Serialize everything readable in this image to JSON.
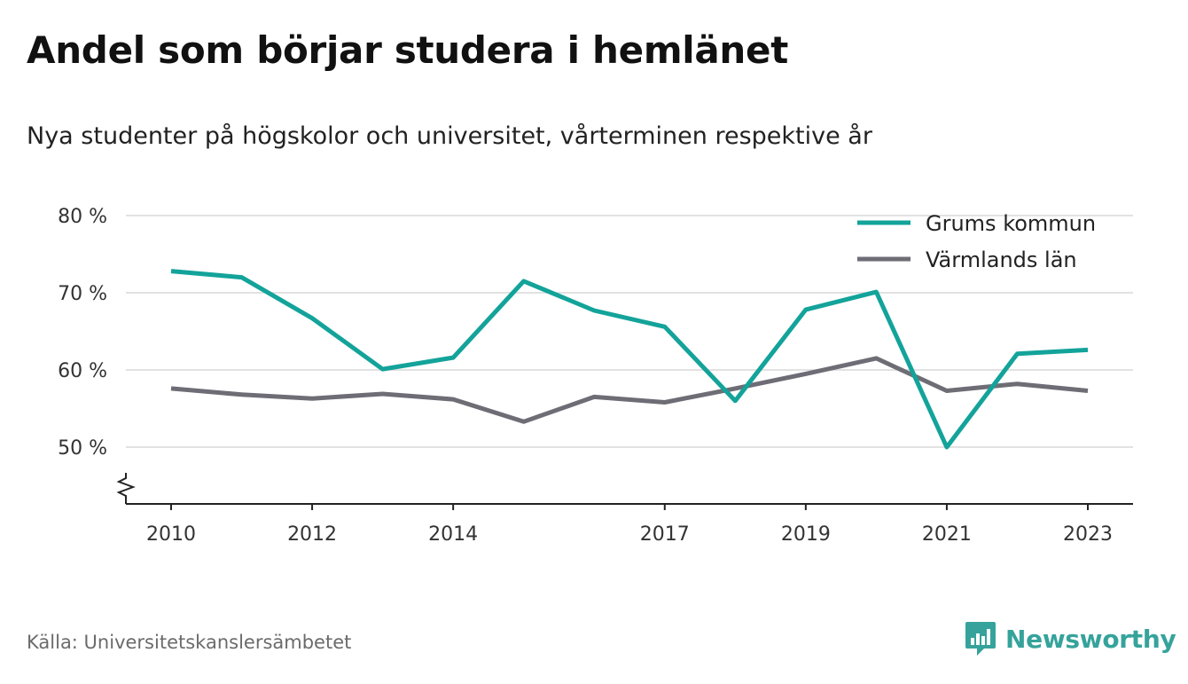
{
  "title": "Andel som börjar studera i hemlänet",
  "subtitle": "Nya studenter på högskolor och universitet, vårterminen respektive år",
  "source": "Källa: Universitetskanslersämbetet",
  "brand": {
    "name": "Newsworthy",
    "icon": "newsworthy-logo-icon",
    "color": "#35a39b"
  },
  "chart_data": {
    "type": "line",
    "x": [
      2010,
      2011,
      2012,
      2013,
      2014,
      2015,
      2016,
      2017,
      2018,
      2019,
      2020,
      2021,
      2022,
      2023
    ],
    "series": [
      {
        "name": "Grums kommun",
        "color": "#13a39a",
        "values": [
          72.8,
          72.0,
          66.7,
          60.1,
          61.6,
          71.5,
          67.7,
          65.6,
          56.0,
          67.8,
          70.1,
          50.0,
          62.1,
          62.6
        ]
      },
      {
        "name": "Värmlands län",
        "color": "#6e6d76",
        "values": [
          57.6,
          56.8,
          56.3,
          56.9,
          56.2,
          53.3,
          56.5,
          55.8,
          57.6,
          59.5,
          61.5,
          57.3,
          58.2,
          57.3
        ]
      }
    ],
    "xticks": [
      2010,
      2012,
      2014,
      2017,
      2019,
      2021,
      2023
    ],
    "yticks": [
      50,
      60,
      70,
      80
    ],
    "ytick_suffix": " %",
    "ylim": [
      42.5,
      80
    ],
    "y_axis_break": true,
    "grid": true,
    "legend_position": "top-right",
    "xlabel": "",
    "ylabel": ""
  }
}
